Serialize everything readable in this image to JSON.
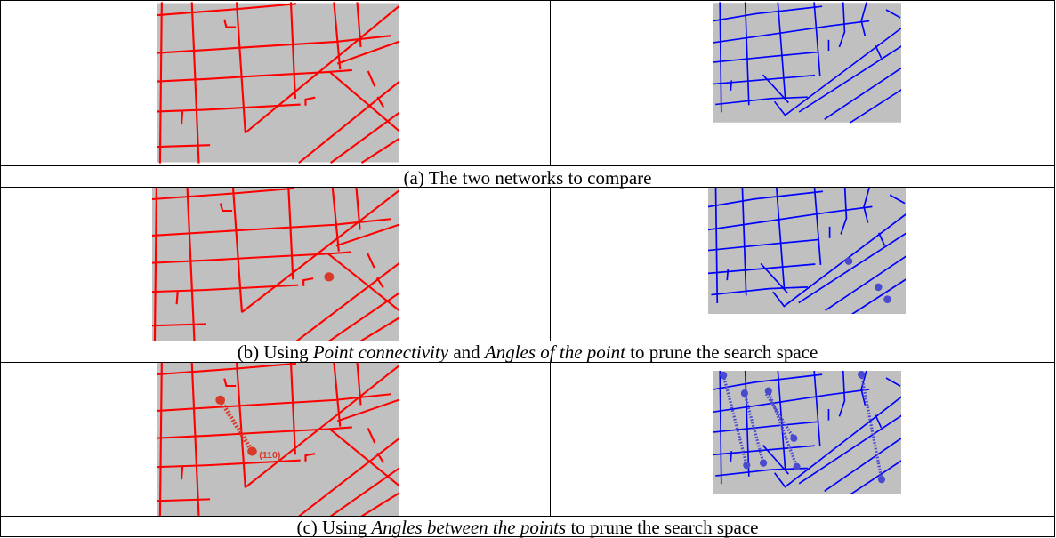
{
  "figure": {
    "rows": [
      {
        "caption_parts": [
          {
            "text": "(a) The two networks to compare",
            "italic": false
          }
        ]
      },
      {
        "caption_parts": [
          {
            "text": "(b) Using ",
            "italic": false
          },
          {
            "text": "Point connectivity",
            "italic": true
          },
          {
            "text": " and ",
            "italic": false
          },
          {
            "text": "Angles of the point",
            "italic": true
          },
          {
            "text": " to prune the search space",
            "italic": false
          }
        ]
      },
      {
        "caption_parts": [
          {
            "text": "(c) Using ",
            "italic": false
          },
          {
            "text": "Angles between the points",
            "italic": true
          },
          {
            "text": " to prune the search space",
            "italic": false
          }
        ]
      }
    ],
    "point_label": "(110)",
    "colors": {
      "map_background": "#c0c0c0",
      "network_a": "#ff0000",
      "network_b": "#0000ff",
      "point_a": "#d83a2a",
      "point_b": "#4a4ad0",
      "border": "#000000"
    }
  }
}
